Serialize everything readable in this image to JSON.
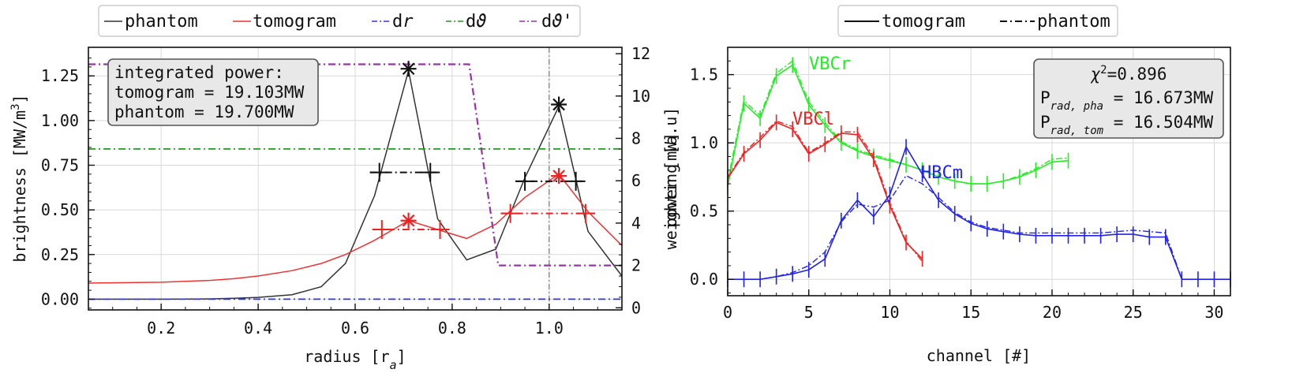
{
  "chart_data": [
    {
      "type": "line",
      "xlabel": "radius [r",
      "xlabel_sub": "a",
      "xlabel_end": "]",
      "ylabel": "brightness [MW/m",
      "ylabel_sup": "3",
      "ylabel_end": "]",
      "y2label": "weighting [a.u]",
      "xlim": [
        0.05,
        1.15
      ],
      "ylim": [
        -0.06,
        1.41
      ],
      "y2lim": [
        -0.1,
        12.3
      ],
      "xticks": [
        "0.2",
        "0.4",
        "0.6",
        "0.8",
        "1.0"
      ],
      "yticks": [
        "0.00",
        "0.25",
        "0.50",
        "0.75",
        "1.00",
        "1.25"
      ],
      "y2ticks": [
        "0",
        "2",
        "4",
        "6",
        "8",
        "10",
        "12"
      ],
      "legend": {
        "position": "top",
        "entries": [
          "phantom",
          "tomogram",
          "d",
          "d",
          "d"
        ],
        "entry_suffix": [
          "",
          "",
          "r",
          "ϑ",
          "ϑ'"
        ]
      },
      "annotation": {
        "line1": "integrated power:",
        "line2": "tomogram = 19.103MW",
        "line3": "phantom = 19.700MW"
      },
      "series": [
        {
          "name": "phantom",
          "color": "#333333",
          "x": [
            0.05,
            0.1,
            0.2,
            0.3,
            0.35,
            0.4,
            0.47,
            0.53,
            0.58,
            0.64,
            0.71,
            0.77,
            0.83,
            0.89,
            0.95,
            1.02,
            1.08,
            1.15
          ],
          "y": [
            0,
            0,
            0,
            0.002,
            0.005,
            0.01,
            0.025,
            0.07,
            0.2,
            0.58,
            1.28,
            0.45,
            0.22,
            0.28,
            0.68,
            1.08,
            0.38,
            0.13
          ]
        },
        {
          "name": "tomogram",
          "color": "#ee3333",
          "x": [
            0.05,
            0.1,
            0.2,
            0.3,
            0.35,
            0.4,
            0.47,
            0.53,
            0.58,
            0.64,
            0.71,
            0.77,
            0.83,
            0.89,
            0.95,
            1.02,
            1.08,
            1.15
          ],
          "y": [
            0.09,
            0.092,
            0.095,
            0.105,
            0.115,
            0.13,
            0.16,
            0.2,
            0.25,
            0.33,
            0.44,
            0.39,
            0.34,
            0.42,
            0.57,
            0.7,
            0.49,
            0.3
          ]
        },
        {
          "name": "dr",
          "color": "#3333ee",
          "x": [
            0.05,
            1.15
          ],
          "y": [
            0,
            0
          ]
        },
        {
          "name": "dϑ",
          "color": "#229922",
          "axis": "right",
          "x": [
            0.05,
            1.15
          ],
          "y": [
            7.5,
            7.5
          ]
        },
        {
          "name": "dϑ'",
          "color": "#9933aa",
          "axis": "right",
          "x": [
            0.05,
            0.835,
            0.895,
            1.15
          ],
          "y": [
            11.5,
            11.5,
            2.0,
            2.0
          ]
        }
      ],
      "peak_markers": [
        {
          "color": "#111111",
          "x": 0.71,
          "y": 1.29,
          "half_width": [
            0.71,
            0.65,
            0.755
          ]
        },
        {
          "color": "#111111",
          "x": 1.02,
          "y": 1.09,
          "half_width": [
            0.66,
            0.95,
            1.055
          ]
        },
        {
          "color": "#ee2222",
          "x": 0.71,
          "y": 0.44,
          "half_width": [
            0.39,
            0.655,
            0.775
          ]
        },
        {
          "color": "#ee2222",
          "x": 1.02,
          "y": 0.69,
          "half_width": [
            0.48,
            0.92,
            1.075
          ]
        }
      ],
      "half_width_y_values": [
        0.71,
        0.66,
        0.39,
        0.48
      ],
      "vline_x": 1.0,
      "grid": true
    },
    {
      "type": "line",
      "xlabel": "channel [#]",
      "ylabel": "power [mW]",
      "xlim": [
        0,
        31
      ],
      "ylim": [
        -0.12,
        1.7
      ],
      "xticks": [
        "0",
        "5",
        "10",
        "15",
        "20",
        "25",
        "30"
      ],
      "yticks": [
        "0.0",
        "0.5",
        "1.0",
        "1.5"
      ],
      "legend": {
        "position": "top",
        "entries": [
          "tomogram",
          "phantom"
        ]
      },
      "annotation": {
        "chi_label": "χ",
        "chi_sup": "2",
        "chi_value": "=0.896",
        "p1_main": "P",
        "p1_sub": "rad, pha",
        "p1_value": " = 16.673MW",
        "p2_main": "P",
        "p2_sub": "rad, tom",
        "p2_value": " = 16.504MW"
      },
      "series": [
        {
          "name": "VBCr",
          "color": "#22ee22",
          "x": [
            0,
            1,
            2,
            3,
            4,
            5,
            6,
            7,
            8,
            9,
            10,
            11,
            12,
            13,
            14,
            15,
            16,
            17,
            18,
            19,
            20,
            21
          ],
          "tomogram": [
            0.68,
            1.29,
            1.18,
            1.49,
            1.57,
            1.28,
            1.13,
            1.0,
            0.94,
            0.9,
            0.87,
            0.84,
            0.8,
            0.75,
            0.72,
            0.7,
            0.7,
            0.72,
            0.75,
            0.8,
            0.86,
            0.87
          ],
          "phantom": [
            0.72,
            1.31,
            1.2,
            1.51,
            1.6,
            1.3,
            1.15,
            1.01,
            0.95,
            0.91,
            0.88,
            0.84,
            0.8,
            0.75,
            0.72,
            0.7,
            0.7,
            0.72,
            0.76,
            0.81,
            0.88,
            0.89
          ]
        },
        {
          "name": "VBCl",
          "color": "#ee2222",
          "x": [
            0,
            1,
            2,
            3,
            4,
            5,
            6,
            7,
            8,
            9,
            10,
            11,
            12
          ],
          "tomogram": [
            0.74,
            0.92,
            1.02,
            1.15,
            1.1,
            0.92,
            0.99,
            1.07,
            1.06,
            0.88,
            0.54,
            0.27,
            0.15
          ],
          "phantom": [
            0.75,
            0.93,
            1.04,
            1.16,
            1.12,
            0.93,
            1.0,
            1.08,
            1.08,
            0.9,
            0.56,
            0.28,
            0.13
          ]
        },
        {
          "name": "HBCm",
          "color": "#2222ee",
          "x": [
            0,
            1,
            2,
            3,
            4,
            5,
            6,
            7,
            8,
            9,
            10,
            11,
            12,
            13,
            14,
            15,
            16,
            17,
            18,
            19,
            20,
            21,
            22,
            23,
            24,
            25,
            26,
            27,
            28,
            29,
            30,
            31
          ],
          "tomogram": [
            0,
            0,
            0,
            0.02,
            0.04,
            0.07,
            0.15,
            0.43,
            0.58,
            0.46,
            0.62,
            0.97,
            0.77,
            0.58,
            0.48,
            0.41,
            0.37,
            0.35,
            0.33,
            0.32,
            0.32,
            0.32,
            0.32,
            0.32,
            0.33,
            0.33,
            0.31,
            0.31,
            0,
            0,
            0,
            0
          ],
          "phantom": [
            0,
            0,
            0,
            0.02,
            0.05,
            0.1,
            0.2,
            0.42,
            0.55,
            0.53,
            0.58,
            0.76,
            0.7,
            0.6,
            0.49,
            0.42,
            0.38,
            0.36,
            0.34,
            0.34,
            0.34,
            0.34,
            0.34,
            0.34,
            0.35,
            0.36,
            0.35,
            0.34,
            0,
            0,
            0,
            0
          ]
        }
      ],
      "grid": true
    }
  ]
}
